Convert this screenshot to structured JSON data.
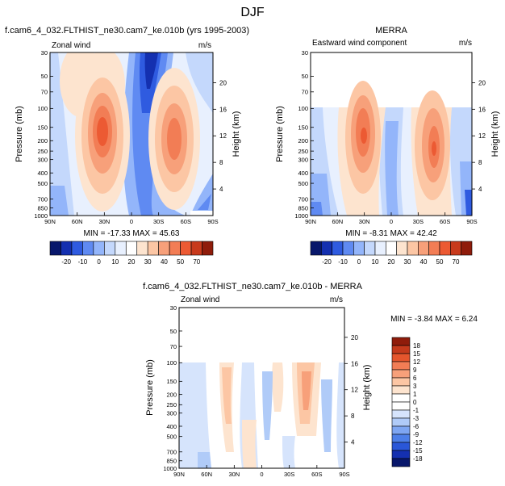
{
  "chart_data": {
    "type": "heatmap",
    "title": "DJF",
    "panels": [
      {
        "id": "model",
        "title": "f.cam6_4_032.FLTHIST_ne30.cam7_ke.010b (yrs 1995-2003)",
        "field_label": "Zonal wind",
        "units": "m/s",
        "xlabel": "",
        "ylabel": "Pressure (mb)",
        "y2label": "Height (km)",
        "stats": "MIN = -17.33   MAX =  45.63"
      },
      {
        "id": "obs",
        "title": "MERRA",
        "field_label": "Eastward wind component",
        "units": "m/s",
        "xlabel": "",
        "ylabel": "Pressure (mb)",
        "y2label": "Height (km)",
        "stats": "MIN =  -8.31   MAX =  42.42"
      },
      {
        "id": "diff",
        "title": "f.cam6_4_032.FLTHIST_ne30.cam7_ke.010b - MERRA",
        "field_label": "Zonal wind",
        "units": "m/s",
        "xlabel": "",
        "ylabel": "Pressure (mb)",
        "y2label": "Height (km)",
        "stats": "MIN =  -3.84   MAX =   6.24"
      }
    ],
    "x_ticks": [
      "90N",
      "60N",
      "30N",
      "0",
      "30S",
      "60S",
      "90S"
    ],
    "pressure_ticks": [
      "30",
      "50",
      "70",
      "100",
      "150",
      "200",
      "250",
      "300",
      "400",
      "500",
      "700",
      "850",
      "1000"
    ],
    "pressure_values": [
      30,
      50,
      70,
      100,
      150,
      200,
      250,
      300,
      400,
      500,
      700,
      850,
      1000
    ],
    "height_ticks_top": [
      "20",
      "16",
      "12",
      "8",
      "4"
    ],
    "height_ticks_values": [
      20,
      16,
      12,
      8,
      4
    ],
    "height_ticks_diff": [
      "20",
      "16",
      "12",
      "8",
      "4"
    ],
    "colorbar_main": {
      "levels": [
        "-20",
        "-10",
        "0",
        "10",
        "20",
        "30",
        "40",
        "50",
        "70"
      ],
      "colors": [
        "#08176b",
        "#1430b0",
        "#2f5be0",
        "#5f8af2",
        "#93b5fa",
        "#c4d8fc",
        "#e8f0fe",
        "#ffffff",
        "#fde4cf",
        "#fcc6a4",
        "#f7a07a",
        "#f27d55",
        "#ec5a33",
        "#c83a1c",
        "#8f1c0b"
      ]
    },
    "colorbar_diff": {
      "levels": [
        "18",
        "15",
        "12",
        "9",
        "6",
        "3",
        "1",
        "0",
        "-1",
        "-3",
        "-6",
        "-9",
        "-12",
        "-15",
        "-18"
      ],
      "colors": [
        "#8f1c0b",
        "#c43a1c",
        "#e5562d",
        "#f27d55",
        "#f7a07a",
        "#fcc6a4",
        "#fde4cf",
        "#ffffff",
        "#ffffff",
        "#d6e4fc",
        "#b0cbf8",
        "#7ea6f2",
        "#4d7fe8",
        "#2a57d8",
        "#1430b0",
        "#08176b"
      ]
    }
  }
}
